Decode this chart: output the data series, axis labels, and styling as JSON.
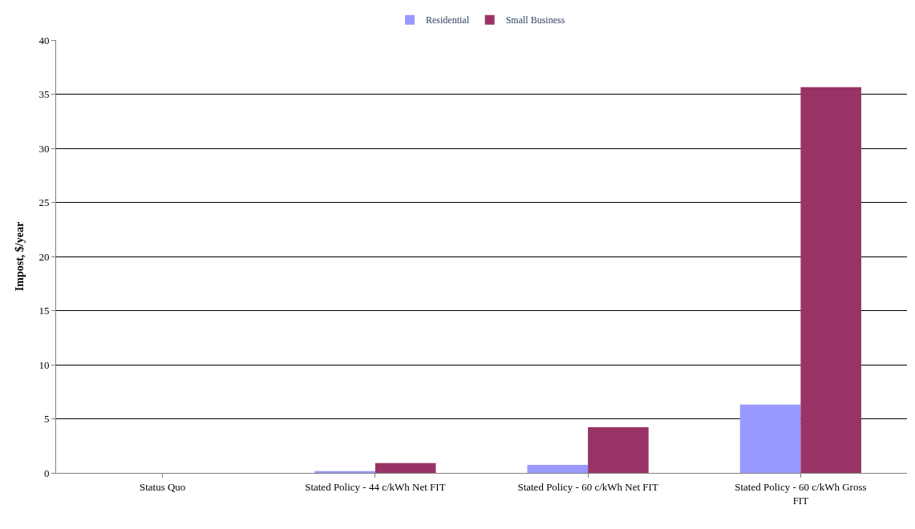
{
  "chart_data": {
    "type": "bar",
    "ylabel": "Impost, $/year",
    "categories": [
      "Status Quo",
      "Stated Policy - 44 c/kWh Net FIT",
      "Stated Policy - 60 c/kWh Net FIT",
      "Stated Policy - 60 c/kWh Gross FIT"
    ],
    "series": [
      {
        "name": "Residential",
        "color": "#9999ff",
        "values": [
          0,
          0.16,
          0.74,
          6.31
        ]
      },
      {
        "name": "Small Business",
        "color": "#993366",
        "values": [
          0,
          0.9,
          4.23,
          35.64
        ]
      }
    ],
    "ylim": [
      0,
      40
    ],
    "yticks": [
      0,
      5,
      10,
      15,
      20,
      25,
      30,
      35,
      40
    ],
    "grid": "y",
    "legend": "top"
  }
}
